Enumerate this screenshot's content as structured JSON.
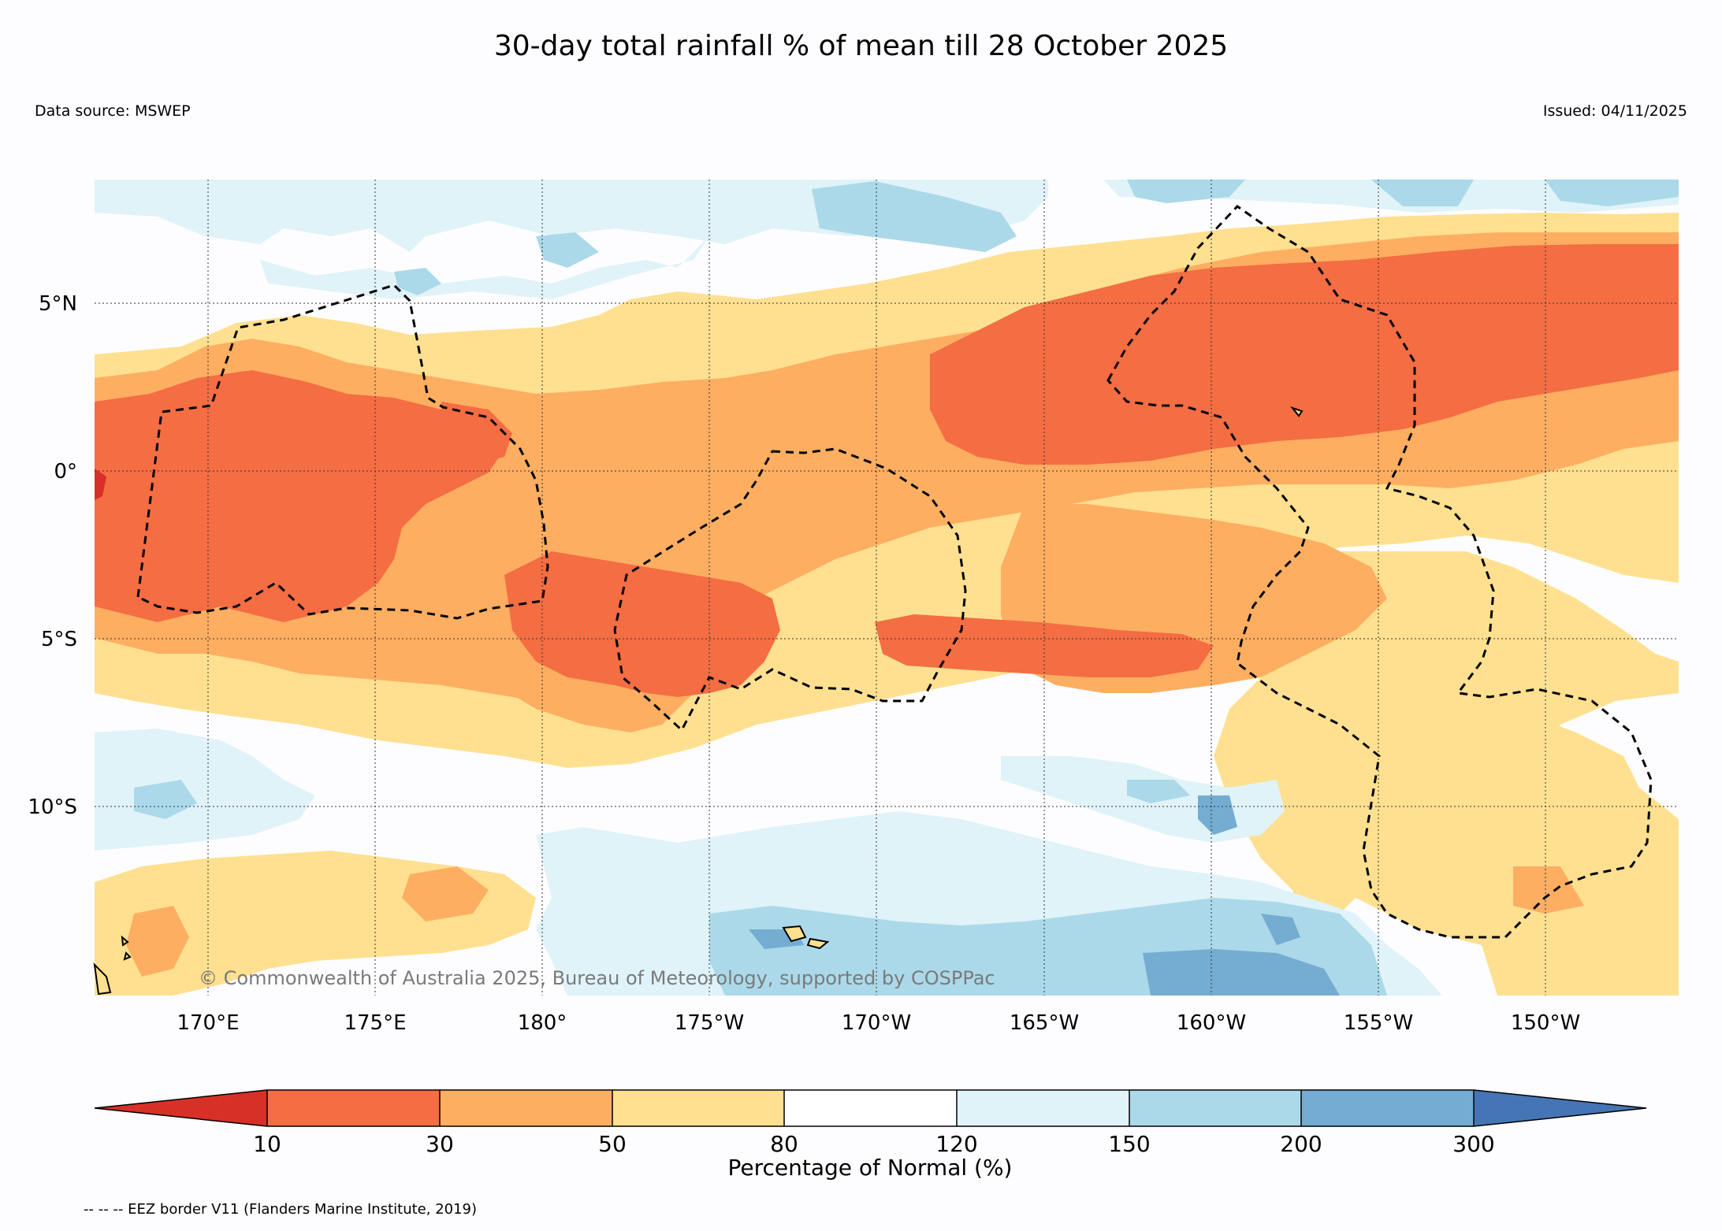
{
  "title": "30-day total rainfall % of mean till 28 October 2025",
  "data_source": "Data source: MSWEP",
  "issued": "Issued: 04/11/2025",
  "copyright": "© Commonwealth of Australia 2025, Bureau of Meteorology, supported by COSPPac",
  "latitude_labels": [
    "5°N",
    "0°",
    "5°S",
    "10°S"
  ],
  "longitude_labels": [
    "170°E",
    "175°E",
    "180°",
    "175°W",
    "170°W",
    "165°W",
    "160°W",
    "155°W",
    "150°W"
  ],
  "colorbar": {
    "title": "Percentage of Normal (%)",
    "ticks": [
      "10",
      "30",
      "50",
      "80",
      "120",
      "150",
      "200",
      "300"
    ],
    "colors": {
      "below_10": "#d73027",
      "10_30": "#f46d43",
      "30_50": "#fdae61",
      "50_80": "#fee090",
      "80_120": "#ffffff",
      "120_150": "#e0f3f8",
      "150_200": "#abd9e9",
      "200_300": "#74add1",
      "above_300": "#4575b4"
    }
  },
  "footer": "-- -- -- EEZ border V11 (Flanders Marine Institute, 2019)"
}
